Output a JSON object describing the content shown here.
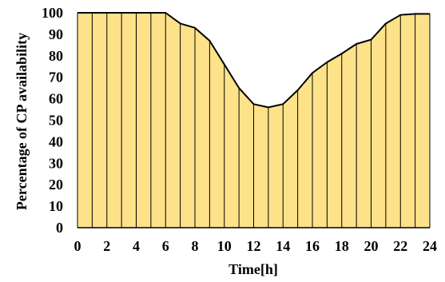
{
  "colors": {
    "fill": "#fde28a",
    "line": "#000000",
    "divider": "#000000",
    "background": "#ffffff"
  },
  "chart_data": {
    "type": "area",
    "title": "",
    "xlabel": "Time[h]",
    "ylabel": "Percentage of CP availability",
    "xlim": [
      0,
      24
    ],
    "ylim": [
      0,
      100
    ],
    "xticks": [
      0,
      2,
      4,
      6,
      8,
      10,
      12,
      14,
      16,
      18,
      20,
      22,
      24
    ],
    "yticks": [
      0,
      10,
      20,
      30,
      40,
      50,
      60,
      70,
      80,
      90,
      100
    ],
    "grid": false,
    "legend": "none",
    "series": [
      {
        "x": [
          0,
          1,
          2,
          3,
          4,
          5,
          6,
          7,
          8,
          9,
          10,
          11,
          12,
          13,
          14,
          15,
          16,
          17,
          18,
          19,
          20,
          21,
          22,
          23,
          24
        ],
        "values": [
          100,
          100,
          100,
          100,
          100,
          100,
          100,
          95,
          93,
          87,
          76,
          65,
          57.5,
          56,
          57.5,
          64,
          72,
          77,
          81,
          85.5,
          87.5,
          95,
          99,
          99.5,
          99.5
        ]
      }
    ]
  }
}
